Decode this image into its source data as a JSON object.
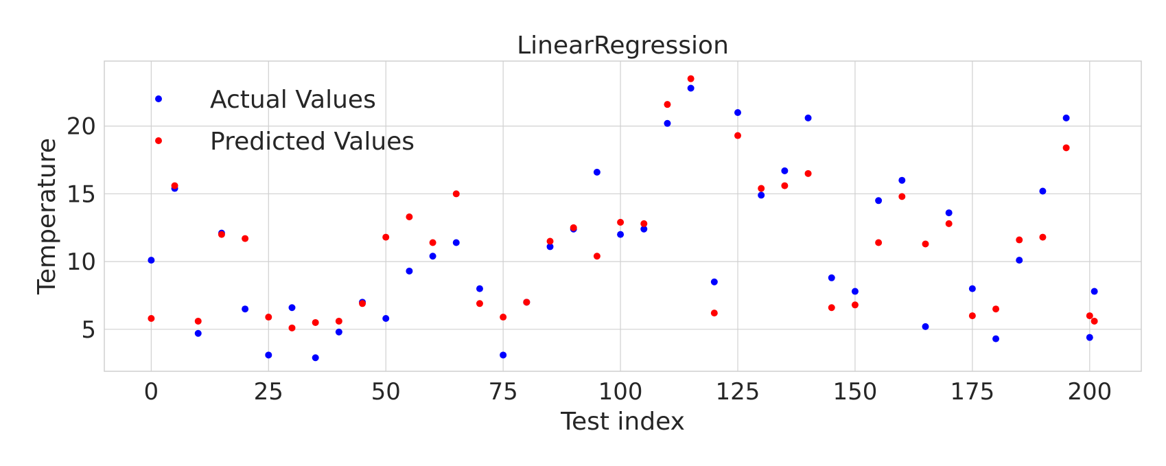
{
  "chart_data": {
    "type": "scatter",
    "title": "LinearRegression",
    "xlabel": "Test index",
    "ylabel": "Temperature",
    "xlim": [
      -10,
      211
    ],
    "ylim": [
      1.9,
      24.8
    ],
    "xticks": [
      0,
      25,
      50,
      75,
      100,
      125,
      150,
      175,
      200
    ],
    "yticks": [
      5,
      10,
      15,
      20
    ],
    "grid": true,
    "legend_position": "upper-left",
    "series": [
      {
        "name": "Actual Values",
        "color": "#0000ff",
        "x": [
          0,
          5,
          10,
          15,
          20,
          25,
          30,
          35,
          40,
          45,
          50,
          55,
          60,
          65,
          70,
          75,
          80,
          85,
          90,
          95,
          100,
          105,
          110,
          115,
          120,
          125,
          130,
          135,
          140,
          145,
          150,
          155,
          160,
          165,
          170,
          175,
          180,
          185,
          190,
          195,
          200,
          201
        ],
        "y": [
          10.1,
          15.4,
          4.7,
          12.1,
          6.5,
          3.1,
          6.6,
          2.9,
          4.8,
          7.0,
          5.8,
          9.3,
          10.4,
          11.4,
          8.0,
          3.1,
          7.0,
          11.1,
          12.4,
          16.6,
          12.0,
          12.4,
          20.2,
          22.8,
          8.5,
          21.0,
          14.9,
          16.7,
          20.6,
          8.8,
          7.8,
          14.5,
          16.0,
          5.2,
          13.6,
          8.0,
          4.3,
          10.1,
          15.2,
          20.6,
          4.4,
          7.8
        ]
      },
      {
        "name": "Predicted Values",
        "color": "#ff0000",
        "x": [
          0,
          5,
          10,
          15,
          20,
          25,
          30,
          35,
          40,
          45,
          50,
          55,
          60,
          65,
          70,
          75,
          80,
          85,
          90,
          95,
          100,
          105,
          110,
          115,
          120,
          125,
          130,
          135,
          140,
          145,
          150,
          155,
          160,
          165,
          170,
          175,
          180,
          185,
          190,
          195,
          200,
          201
        ],
        "y": [
          5.8,
          15.6,
          5.6,
          12.0,
          11.7,
          5.9,
          5.1,
          5.5,
          5.6,
          6.9,
          11.8,
          13.3,
          11.4,
          15.0,
          6.9,
          5.9,
          7.0,
          11.5,
          12.5,
          10.4,
          12.9,
          12.8,
          21.6,
          23.5,
          6.2,
          19.3,
          15.4,
          15.6,
          16.5,
          6.6,
          6.8,
          11.4,
          14.8,
          11.3,
          12.8,
          6.0,
          6.5,
          11.6,
          11.8,
          18.4,
          6.0,
          5.6
        ]
      }
    ]
  }
}
